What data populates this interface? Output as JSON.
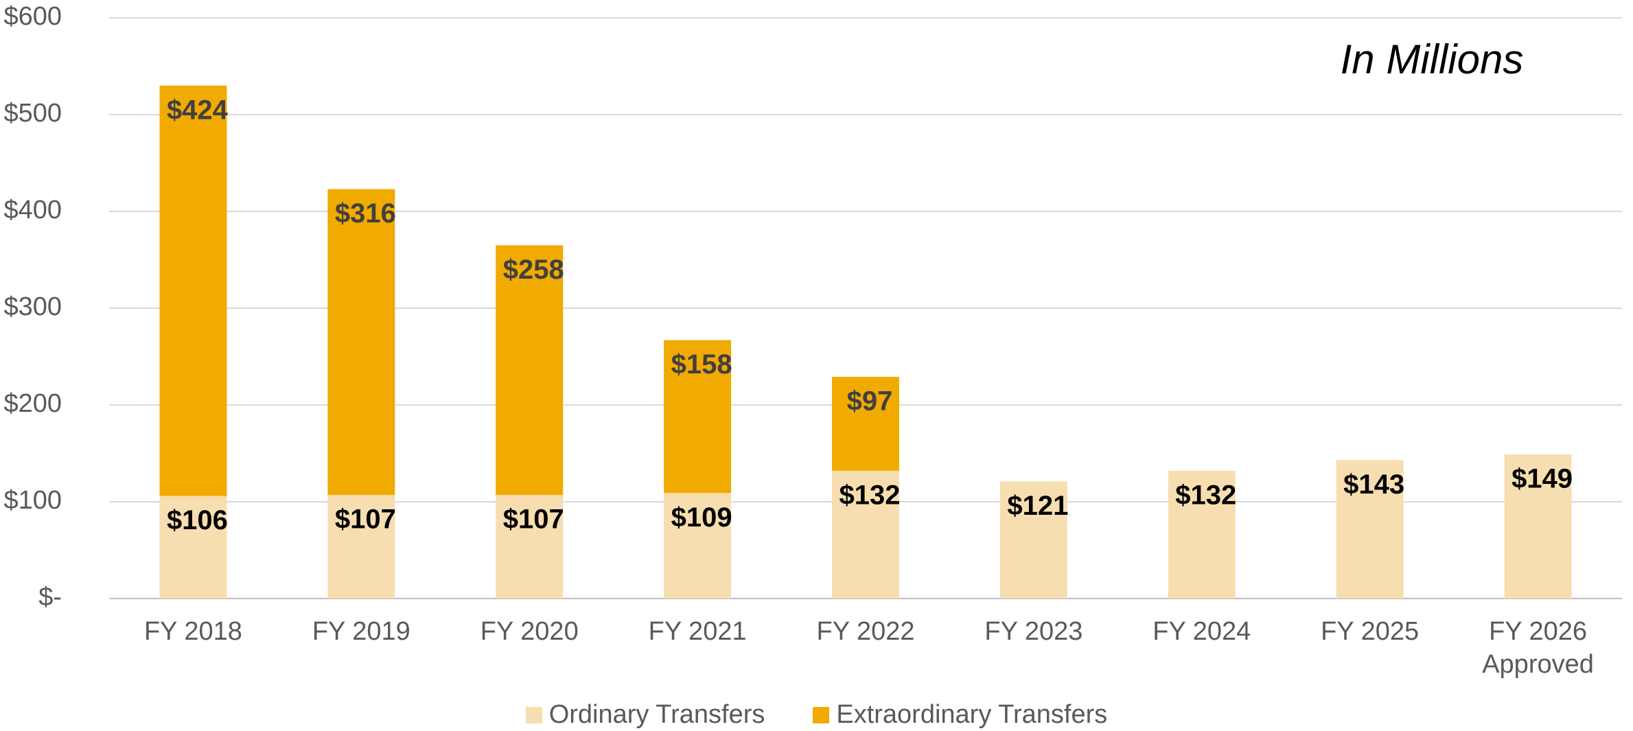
{
  "chart_data": {
    "type": "stacked_bar",
    "annotation": "In Millions",
    "categories": [
      "FY 2018",
      "FY 2019",
      "FY 2020",
      "FY 2021",
      "FY 2022",
      "FY 2023",
      "FY 2024",
      "FY 2025",
      "FY 2026 Approved"
    ],
    "series": [
      {
        "name": "Ordinary Transfers",
        "color": "#f7deb0",
        "label_color": "#000000",
        "values": [
          106,
          107,
          107,
          109,
          132,
          121,
          132,
          143,
          149
        ],
        "value_labels": [
          "$106",
          "$107",
          "$107",
          "$109",
          "$132",
          "$121",
          "$132",
          "$143",
          "$149"
        ]
      },
      {
        "name": "Extraordinary Transfers",
        "color": "#f0aa00",
        "label_color": "#404040",
        "values": [
          424,
          316,
          258,
          158,
          97,
          null,
          null,
          null,
          null
        ],
        "value_labels": [
          "$424",
          "$316",
          "$258",
          "$158",
          "$97",
          null,
          null,
          null,
          null
        ]
      }
    ],
    "ylim": [
      0,
      600
    ],
    "yticks": [
      {
        "value": 0,
        "label": "$-"
      },
      {
        "value": 100,
        "label": "$100"
      },
      {
        "value": 200,
        "label": "$200"
      },
      {
        "value": 300,
        "label": "$300"
      },
      {
        "value": 400,
        "label": "$400"
      },
      {
        "value": 500,
        "label": "$500"
      },
      {
        "value": 600,
        "label": "$600"
      }
    ],
    "grid": true,
    "legend": "bottom"
  }
}
